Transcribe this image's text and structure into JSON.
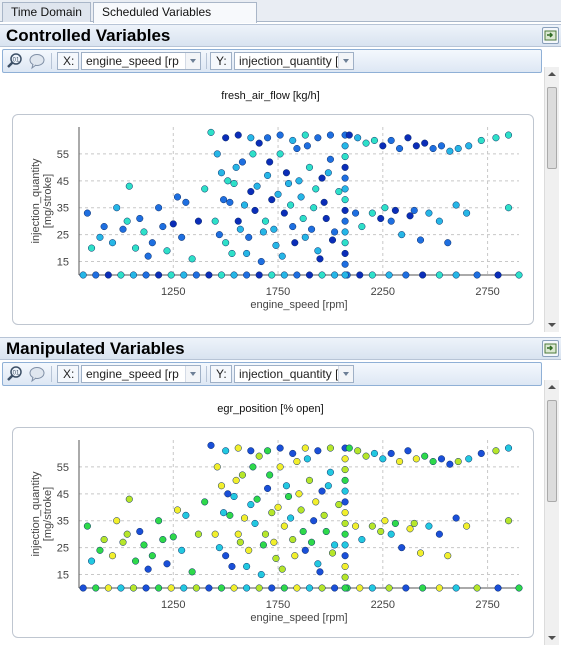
{
  "tabs": [
    {
      "label": "Time Domain",
      "active": false
    },
    {
      "label": "Scheduled Variables Domain",
      "active": true
    }
  ],
  "panels": [
    {
      "title": "Controlled Variables",
      "x_label": "X:",
      "x_value": "engine_speed [rp",
      "y_label": "Y:",
      "y_value": "injection_quantity [",
      "chart_title": "fresh_air_flow [kg/h]"
    },
    {
      "title": "Manipulated Variables",
      "x_label": "X:",
      "x_value": "engine_speed [rp",
      "y_label": "Y:",
      "y_value": "injection_quantity [",
      "chart_title": "egr_position [% open]"
    }
  ],
  "chart_data": [
    {
      "type": "scatter",
      "title": "fresh_air_flow [kg/h]",
      "xlabel": "engine_speed [rpm]",
      "ylabel": "injection_quantity [mg/stroke]",
      "xticks": [
        "1250",
        "1750",
        "2250",
        "2750"
      ],
      "yticks": [
        "15",
        "25",
        "35",
        "45",
        "55"
      ],
      "xlim": [
        800,
        2900
      ],
      "ylim": [
        10,
        65
      ],
      "grid": true,
      "color_scale": [
        "#0b2db8",
        "#1e6fe0",
        "#26b6e6",
        "#2ee0c8"
      ],
      "points": [
        [
          820,
          10
        ],
        [
          880,
          10
        ],
        [
          940,
          10
        ],
        [
          1000,
          10
        ],
        [
          1060,
          10
        ],
        [
          1120,
          10
        ],
        [
          1180,
          10
        ],
        [
          1240,
          10
        ],
        [
          1300,
          10
        ],
        [
          1360,
          10
        ],
        [
          1420,
          10
        ],
        [
          1480,
          10
        ],
        [
          1540,
          10
        ],
        [
          1600,
          10
        ],
        [
          1660,
          10
        ],
        [
          1720,
          10
        ],
        [
          1780,
          10
        ],
        [
          1840,
          10
        ],
        [
          1900,
          10
        ],
        [
          1960,
          10
        ],
        [
          2020,
          10
        ],
        [
          2080,
          10
        ],
        [
          2140,
          10
        ],
        [
          2200,
          10
        ],
        [
          2280,
          10
        ],
        [
          2360,
          10
        ],
        [
          2440,
          10
        ],
        [
          2520,
          10
        ],
        [
          2600,
          10
        ],
        [
          2700,
          10
        ],
        [
          2800,
          10
        ],
        [
          2900,
          10
        ],
        [
          840,
          33
        ],
        [
          860,
          20
        ],
        [
          900,
          24
        ],
        [
          920,
          28
        ],
        [
          960,
          22
        ],
        [
          980,
          35
        ],
        [
          1010,
          27
        ],
        [
          1030,
          30
        ],
        [
          1040,
          43
        ],
        [
          1070,
          20
        ],
        [
          1090,
          31
        ],
        [
          1110,
          26
        ],
        [
          1130,
          17
        ],
        [
          1150,
          22
        ],
        [
          1180,
          35
        ],
        [
          1200,
          28
        ],
        [
          1220,
          19
        ],
        [
          1250,
          29
        ],
        [
          1270,
          39
        ],
        [
          1290,
          24
        ],
        [
          1310,
          37
        ],
        [
          1340,
          16
        ],
        [
          1370,
          30
        ],
        [
          1400,
          42
        ],
        [
          1430,
          63
        ],
        [
          1460,
          55
        ],
        [
          1480,
          48
        ],
        [
          1500,
          22
        ],
        [
          1520,
          37
        ],
        [
          1540,
          44
        ],
        [
          1560,
          30
        ],
        [
          1580,
          52
        ],
        [
          1600,
          18
        ],
        [
          1620,
          41
        ],
        [
          1640,
          34
        ],
        [
          1660,
          59
        ],
        [
          1680,
          26
        ],
        [
          1700,
          47
        ],
        [
          1720,
          38
        ],
        [
          1740,
          21
        ],
        [
          1760,
          55
        ],
        [
          1780,
          33
        ],
        [
          1800,
          44
        ],
        [
          1820,
          28
        ],
        [
          1840,
          57
        ],
        [
          1860,
          39
        ],
        [
          1880,
          24
        ],
        [
          1900,
          50
        ],
        [
          1920,
          35
        ],
        [
          1940,
          19
        ],
        [
          1960,
          46
        ],
        [
          1980,
          31
        ],
        [
          2000,
          53
        ],
        [
          2020,
          26
        ],
        [
          2040,
          41
        ],
        [
          1450,
          30
        ],
        [
          1470,
          25
        ],
        [
          1490,
          38
        ],
        [
          1510,
          45
        ],
        [
          1530,
          18
        ],
        [
          1550,
          50
        ],
        [
          1570,
          27
        ],
        [
          1590,
          36
        ],
        [
          1610,
          24
        ],
        [
          1630,
          55
        ],
        [
          1650,
          43
        ],
        [
          1670,
          15
        ],
        [
          1690,
          30
        ],
        [
          1710,
          52
        ],
        [
          1730,
          27
        ],
        [
          1750,
          40
        ],
        [
          1770,
          17
        ],
        [
          1790,
          48
        ],
        [
          1810,
          36
        ],
        [
          1830,
          22
        ],
        [
          1850,
          45
        ],
        [
          1870,
          31
        ],
        [
          1890,
          58
        ],
        [
          1910,
          27
        ],
        [
          1930,
          42
        ],
        [
          1950,
          16
        ],
        [
          1970,
          37
        ],
        [
          1990,
          48
        ],
        [
          2010,
          23
        ],
        [
          2070,
          10
        ],
        [
          2070,
          14
        ],
        [
          2070,
          18
        ],
        [
          2070,
          22
        ],
        [
          2070,
          26
        ],
        [
          2070,
          30
        ],
        [
          2070,
          34
        ],
        [
          2070,
          38
        ],
        [
          2070,
          42
        ],
        [
          2070,
          46
        ],
        [
          2070,
          50
        ],
        [
          2070,
          54
        ],
        [
          2070,
          58
        ],
        [
          2070,
          62
        ],
        [
          2090,
          62
        ],
        [
          2130,
          61
        ],
        [
          2170,
          59
        ],
        [
          2210,
          60
        ],
        [
          2250,
          58
        ],
        [
          2290,
          60
        ],
        [
          2330,
          57
        ],
        [
          2370,
          61
        ],
        [
          2410,
          58
        ],
        [
          2450,
          59
        ],
        [
          2490,
          57
        ],
        [
          2530,
          58
        ],
        [
          2570,
          56
        ],
        [
          2610,
          57
        ],
        [
          2660,
          58
        ],
        [
          2720,
          60
        ],
        [
          2790,
          61
        ],
        [
          2850,
          62
        ],
        [
          2120,
          33
        ],
        [
          2150,
          28
        ],
        [
          2200,
          33
        ],
        [
          2240,
          31
        ],
        [
          2260,
          35
        ],
        [
          2290,
          30
        ],
        [
          2310,
          34
        ],
        [
          2340,
          25
        ],
        [
          2380,
          32
        ],
        [
          2400,
          34
        ],
        [
          2430,
          23
        ],
        [
          2470,
          33
        ],
        [
          2520,
          30
        ],
        [
          2560,
          22
        ],
        [
          2600,
          36
        ],
        [
          2650,
          33
        ],
        [
          2850,
          35
        ],
        [
          1500,
          61
        ],
        [
          1560,
          62
        ],
        [
          1620,
          61
        ],
        [
          1700,
          61
        ],
        [
          1760,
          62
        ],
        [
          1820,
          60
        ],
        [
          1880,
          62
        ],
        [
          1940,
          61
        ],
        [
          2000,
          62
        ]
      ]
    },
    {
      "type": "scatter",
      "title": "egr_position [% open]",
      "xlabel": "engine_speed [rpm]",
      "ylabel": "injection_quantity [mg/stroke]",
      "xticks": [
        "1250",
        "1750",
        "2250",
        "2750"
      ],
      "yticks": [
        "15",
        "25",
        "35",
        "45",
        "55"
      ],
      "xlim": [
        800,
        2900
      ],
      "ylim": [
        10,
        65
      ],
      "grid": true,
      "color_scale": [
        "#1a4fd8",
        "#22c8e0",
        "#2ed94a",
        "#b6e62a",
        "#f2ef2c"
      ],
      "points": [
        [
          820,
          10
        ],
        [
          880,
          10
        ],
        [
          940,
          10
        ],
        [
          1000,
          10
        ],
        [
          1060,
          10
        ],
        [
          1120,
          10
        ],
        [
          1180,
          10
        ],
        [
          1240,
          10
        ],
        [
          1300,
          10
        ],
        [
          1360,
          10
        ],
        [
          1420,
          10
        ],
        [
          1480,
          10
        ],
        [
          1540,
          10
        ],
        [
          1600,
          10
        ],
        [
          1660,
          10
        ],
        [
          1720,
          10
        ],
        [
          1780,
          10
        ],
        [
          1840,
          10
        ],
        [
          1900,
          10
        ],
        [
          1960,
          10
        ],
        [
          2020,
          10
        ],
        [
          2080,
          10
        ],
        [
          2140,
          10
        ],
        [
          2200,
          10
        ],
        [
          2280,
          10
        ],
        [
          2360,
          10
        ],
        [
          2440,
          10
        ],
        [
          2520,
          10
        ],
        [
          2600,
          10
        ],
        [
          2700,
          10
        ],
        [
          2800,
          10
        ],
        [
          2900,
          10
        ],
        [
          840,
          33
        ],
        [
          860,
          20
        ],
        [
          900,
          24
        ],
        [
          920,
          28
        ],
        [
          960,
          22
        ],
        [
          980,
          35
        ],
        [
          1010,
          27
        ],
        [
          1030,
          30
        ],
        [
          1040,
          43
        ],
        [
          1070,
          20
        ],
        [
          1090,
          31
        ],
        [
          1110,
          26
        ],
        [
          1130,
          17
        ],
        [
          1150,
          22
        ],
        [
          1180,
          35
        ],
        [
          1200,
          28
        ],
        [
          1220,
          19
        ],
        [
          1250,
          29
        ],
        [
          1270,
          39
        ],
        [
          1290,
          24
        ],
        [
          1310,
          37
        ],
        [
          1340,
          16
        ],
        [
          1370,
          30
        ],
        [
          1400,
          42
        ],
        [
          1430,
          63
        ],
        [
          1460,
          55
        ],
        [
          1480,
          48
        ],
        [
          1500,
          22
        ],
        [
          1520,
          37
        ],
        [
          1540,
          44
        ],
        [
          1560,
          30
        ],
        [
          1580,
          52
        ],
        [
          1600,
          18
        ],
        [
          1620,
          41
        ],
        [
          1640,
          34
        ],
        [
          1660,
          59
        ],
        [
          1680,
          26
        ],
        [
          1700,
          47
        ],
        [
          1720,
          38
        ],
        [
          1740,
          21
        ],
        [
          1760,
          55
        ],
        [
          1780,
          33
        ],
        [
          1800,
          44
        ],
        [
          1820,
          28
        ],
        [
          1840,
          57
        ],
        [
          1860,
          39
        ],
        [
          1880,
          24
        ],
        [
          1900,
          50
        ],
        [
          1920,
          35
        ],
        [
          1940,
          19
        ],
        [
          1960,
          46
        ],
        [
          1980,
          31
        ],
        [
          2000,
          53
        ],
        [
          2020,
          26
        ],
        [
          2040,
          41
        ],
        [
          1450,
          30
        ],
        [
          1470,
          25
        ],
        [
          1490,
          38
        ],
        [
          1510,
          45
        ],
        [
          1530,
          18
        ],
        [
          1550,
          50
        ],
        [
          1570,
          27
        ],
        [
          1590,
          36
        ],
        [
          1610,
          24
        ],
        [
          1630,
          55
        ],
        [
          1650,
          43
        ],
        [
          1670,
          15
        ],
        [
          1690,
          30
        ],
        [
          1710,
          52
        ],
        [
          1730,
          27
        ],
        [
          1750,
          40
        ],
        [
          1770,
          17
        ],
        [
          1790,
          48
        ],
        [
          1810,
          36
        ],
        [
          1830,
          22
        ],
        [
          1850,
          45
        ],
        [
          1870,
          31
        ],
        [
          1890,
          58
        ],
        [
          1910,
          27
        ],
        [
          1930,
          42
        ],
        [
          1950,
          16
        ],
        [
          1970,
          37
        ],
        [
          1990,
          48
        ],
        [
          2010,
          23
        ],
        [
          2070,
          10
        ],
        [
          2070,
          14
        ],
        [
          2070,
          18
        ],
        [
          2070,
          22
        ],
        [
          2070,
          26
        ],
        [
          2070,
          30
        ],
        [
          2070,
          34
        ],
        [
          2070,
          38
        ],
        [
          2070,
          42
        ],
        [
          2070,
          46
        ],
        [
          2070,
          50
        ],
        [
          2070,
          54
        ],
        [
          2070,
          58
        ],
        [
          2070,
          62
        ],
        [
          2090,
          62
        ],
        [
          2130,
          61
        ],
        [
          2170,
          59
        ],
        [
          2210,
          60
        ],
        [
          2250,
          58
        ],
        [
          2290,
          60
        ],
        [
          2330,
          57
        ],
        [
          2370,
          61
        ],
        [
          2410,
          58
        ],
        [
          2450,
          59
        ],
        [
          2490,
          57
        ],
        [
          2530,
          58
        ],
        [
          2570,
          56
        ],
        [
          2610,
          57
        ],
        [
          2660,
          58
        ],
        [
          2720,
          60
        ],
        [
          2790,
          61
        ],
        [
          2850,
          62
        ],
        [
          2120,
          33
        ],
        [
          2150,
          28
        ],
        [
          2200,
          33
        ],
        [
          2240,
          31
        ],
        [
          2260,
          35
        ],
        [
          2290,
          30
        ],
        [
          2310,
          34
        ],
        [
          2340,
          25
        ],
        [
          2380,
          32
        ],
        [
          2400,
          34
        ],
        [
          2430,
          23
        ],
        [
          2470,
          33
        ],
        [
          2520,
          30
        ],
        [
          2560,
          22
        ],
        [
          2600,
          36
        ],
        [
          2650,
          33
        ],
        [
          2850,
          35
        ],
        [
          1500,
          61
        ],
        [
          1560,
          62
        ],
        [
          1620,
          61
        ],
        [
          1700,
          61
        ],
        [
          1760,
          62
        ],
        [
          1820,
          60
        ],
        [
          1880,
          62
        ],
        [
          1940,
          61
        ],
        [
          2000,
          62
        ]
      ]
    }
  ]
}
